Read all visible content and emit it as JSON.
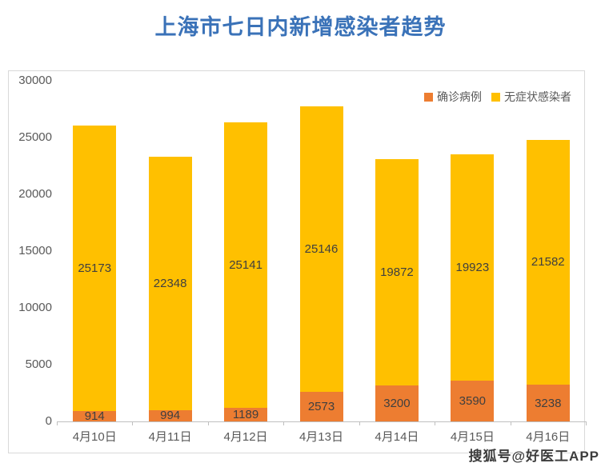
{
  "title": "上海市七日内新增感染者趋势",
  "watermark": "搜狐号@好医工APP",
  "legend": {
    "confirmed_label": "确诊病例",
    "asymptomatic_label": "无症状感染者"
  },
  "colors": {
    "confirmed": "#ED7D31",
    "asymptomatic": "#FFC000",
    "title_blue": "#3A72B8",
    "axis_text": "#595959",
    "bar_label_text": "#3F3F3F",
    "axis_line": "#BFBFBF",
    "chart_border": "#D9D9D9"
  },
  "chart_data": {
    "type": "bar",
    "stacked": true,
    "title": "上海市七日内新增感染者趋势",
    "categories": [
      "4月10日",
      "4月11日",
      "4月12日",
      "4月13日",
      "4月14日",
      "4月15日",
      "4月16日"
    ],
    "series": [
      {
        "name": "确诊病例",
        "color": "#ED7D31",
        "values": [
          914,
          994,
          1189,
          2573,
          3200,
          3590,
          3238
        ]
      },
      {
        "name": "无症状感染者",
        "color": "#FFC000",
        "values": [
          25173,
          22348,
          25141,
          25146,
          19872,
          19923,
          21582
        ]
      }
    ],
    "xlabel": "",
    "ylabel": "",
    "ylim": [
      0,
      30000
    ],
    "yticks": [
      0,
      5000,
      10000,
      15000,
      20000,
      25000,
      30000
    ],
    "grid": false,
    "legend_position": "top-right",
    "data_labels": true
  }
}
